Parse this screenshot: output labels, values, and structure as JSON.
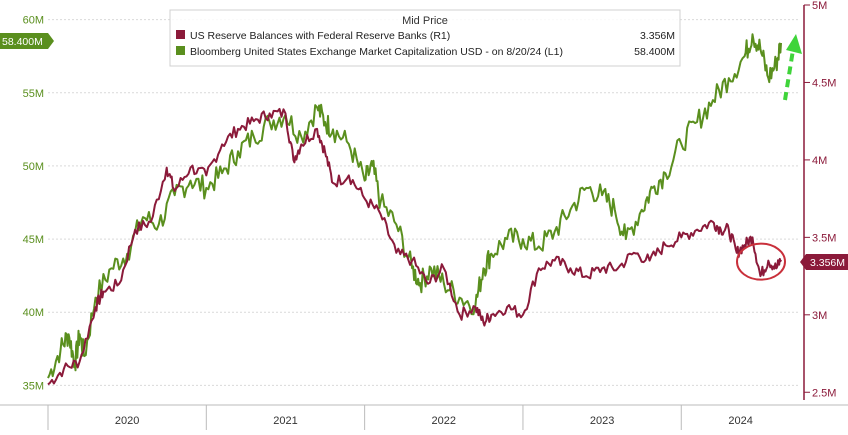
{
  "chart_data": {
    "type": "line",
    "legend": {
      "title": "Mid Price",
      "placement": "top-center",
      "entries": [
        {
          "name": "US Reserve Balances with Federal Reserve Banks  (R1)",
          "last": "3.356M",
          "color": "#8b1a3a"
        },
        {
          "name": "Bloomberg United States Exchange Market Capitalization USD -  on 8/20/24  (L1)",
          "last": "58.400M",
          "color": "#5a8f1e"
        }
      ]
    },
    "x_axis": {
      "ticks": [
        "2020",
        "2021",
        "2022",
        "2023",
        "2024"
      ],
      "range": [
        2020.0,
        2024.75
      ]
    },
    "left_axis": {
      "ticks": [
        "35M",
        "40M",
        "45M",
        "50M",
        "55M",
        "60M"
      ],
      "range": [
        34,
        61
      ],
      "tick_values": [
        35,
        40,
        45,
        50,
        55,
        60
      ]
    },
    "right_axis": {
      "ticks": [
        "2.5M",
        "3M",
        "3.5M",
        "4M",
        "4.5M",
        "5M"
      ],
      "range": [
        2.45,
        5.0
      ],
      "tick_values": [
        2.5,
        3.0,
        3.5,
        4.0,
        4.5,
        5.0
      ]
    },
    "last_value_tags": {
      "left": "58.400M",
      "right": "3.356M"
    },
    "grid": true,
    "annotations": [
      "green dashed up arrow",
      "red circle around latest reserve balances"
    ],
    "series": [
      {
        "name": "Bloomberg United States Exchange Market Capitalization USD -  on 8/20/24  (L1)",
        "axis": "left",
        "color": "#5a8f1e",
        "x": [
          2020.0,
          2020.08,
          2020.13,
          2020.17,
          2020.2,
          2020.23,
          2020.3,
          2020.4,
          2020.5,
          2020.6,
          2020.7,
          2020.8,
          2020.9,
          2021.0,
          2021.1,
          2021.2,
          2021.3,
          2021.4,
          2021.5,
          2021.6,
          2021.7,
          2021.75,
          2021.8,
          2021.9,
          2022.0,
          2022.05,
          2022.1,
          2022.2,
          2022.3,
          2022.35,
          2022.42,
          2022.5,
          2022.6,
          2022.7,
          2022.75,
          2022.8,
          2022.9,
          2023.0,
          2023.1,
          2023.2,
          2023.3,
          2023.4,
          2023.5,
          2023.58,
          2023.65,
          2023.75,
          2023.82,
          2023.9,
          2024.0,
          2024.1,
          2024.2,
          2024.3,
          2024.4,
          2024.45,
          2024.5,
          2024.55,
          2024.6,
          2024.63
        ],
        "y": [
          35.5,
          37.5,
          38.5,
          36.5,
          38.5,
          37,
          41,
          43,
          44,
          46.5,
          46,
          48,
          49,
          48.5,
          49.5,
          51,
          52,
          53,
          53.5,
          52,
          54,
          53,
          52.5,
          51.5,
          49,
          50,
          47.5,
          46,
          43,
          42,
          43,
          42,
          41,
          40.5,
          43,
          44,
          45,
          45,
          44.5,
          45.5,
          47,
          48.5,
          48,
          47,
          45,
          47,
          48.5,
          49.5,
          51.5,
          53,
          54.5,
          56,
          57.5,
          59,
          58,
          56,
          57,
          58.4
        ]
      },
      {
        "name": "US Reserve Balances with Federal Reserve Banks  (R1)",
        "axis": "right",
        "color": "#8b1a3a",
        "x": [
          2020.0,
          2020.1,
          2020.2,
          2020.3,
          2020.35,
          2020.45,
          2020.55,
          2020.65,
          2020.75,
          2020.8,
          2020.9,
          2021.0,
          2021.1,
          2021.2,
          2021.3,
          2021.4,
          2021.5,
          2021.55,
          2021.6,
          2021.7,
          2021.75,
          2021.8,
          2021.9,
          2022.0,
          2022.1,
          2022.2,
          2022.3,
          2022.4,
          2022.5,
          2022.6,
          2022.7,
          2022.75,
          2022.8,
          2022.9,
          2023.0,
          2023.1,
          2023.2,
          2023.3,
          2023.4,
          2023.5,
          2023.6,
          2023.7,
          2023.8,
          2023.9,
          2024.0,
          2024.1,
          2024.2,
          2024.25,
          2024.3,
          2024.35,
          2024.4,
          2024.45,
          2024.5,
          2024.55,
          2024.6,
          2024.63
        ],
        "y": [
          2.55,
          2.65,
          2.7,
          3.05,
          3.15,
          3.2,
          3.55,
          3.6,
          3.95,
          3.8,
          3.95,
          3.9,
          4.1,
          4.2,
          4.25,
          4.3,
          4.3,
          4.0,
          4.1,
          4.2,
          4.05,
          3.85,
          3.9,
          3.75,
          3.65,
          3.4,
          3.35,
          3.2,
          3.3,
          3.0,
          3.05,
          2.95,
          3.0,
          3.05,
          3.0,
          3.3,
          3.35,
          3.3,
          3.25,
          3.3,
          3.3,
          3.4,
          3.35,
          3.45,
          3.5,
          3.55,
          3.6,
          3.55,
          3.55,
          3.4,
          3.45,
          3.5,
          3.25,
          3.35,
          3.3,
          3.356
        ]
      }
    ]
  }
}
